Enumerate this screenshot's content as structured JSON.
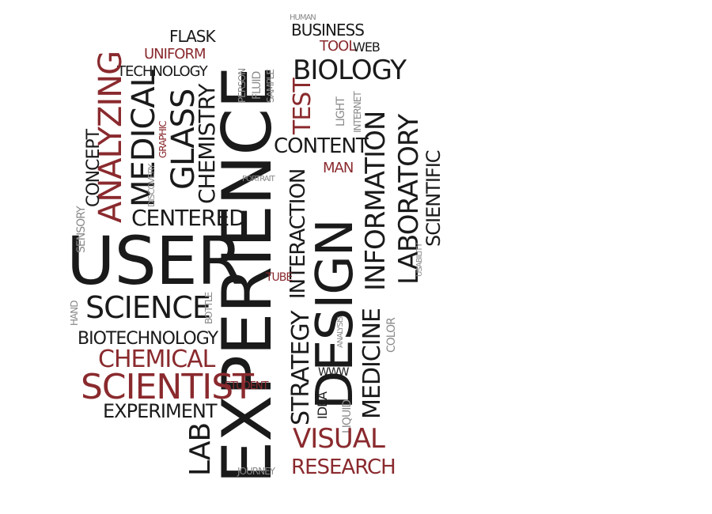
{
  "colors": {
    "dark": "#1a1a1a",
    "red": "#8a2a2e",
    "gray": "#8a8a8a",
    "background": "#ffffff"
  },
  "words": {
    "experience": "EXPERIENCE",
    "design": "DESIGN",
    "user": "USER",
    "science": "SCIENCE",
    "biotechnology": "BIOTECHNOLOGY",
    "chemical": "CHEMICAL",
    "scientist": "SCIENTIST",
    "experiment": "EXPERIMENT",
    "lab": "LAB",
    "visual": "VISUAL",
    "research": "RESEARCH",
    "strategy": "STRATEGY",
    "interaction": "INTERACTION",
    "content": "CONTENT",
    "information": "INFORMATION",
    "laboratory": "LABORATORY",
    "scientific": "SCIENTIFIC",
    "medicine": "MEDICINE",
    "biology": "BIOLOGY",
    "business": "BUSINESS",
    "tool": "TOOL",
    "web": "WEB",
    "flask": "FLASK",
    "uniform": "UNIFORM",
    "technology": "TECHNOLOGY",
    "glass": "GLASS",
    "chemistry": "CHEMISTRY",
    "medical": "MEDICAL",
    "analyzing": "ANALYZING",
    "concept": "CONCEPT",
    "centered": "CENTERED",
    "sensory": "SENSORY",
    "test": "TEST",
    "light": "LIGHT",
    "internet": "INTERNET",
    "man": "MAN",
    "idea": "IDEA",
    "liquid": "LIQUID",
    "color": "COLOR",
    "journey": "JOURNEY",
    "student": "STUDENT",
    "fluid": "FLUID",
    "person": "PERSON",
    "sample": "SAMPLE",
    "tube": "TUBE",
    "hand": "HAND",
    "bottle": "BOTTLE",
    "discovery": "DISCOVERY",
    "graphic": "GRAPHIC",
    "portrait": "PORTRAIT",
    "analysis": "ANALYSIS",
    "human": "HUMAN",
    "www": "WWW",
    "usability": "USABILITY"
  }
}
